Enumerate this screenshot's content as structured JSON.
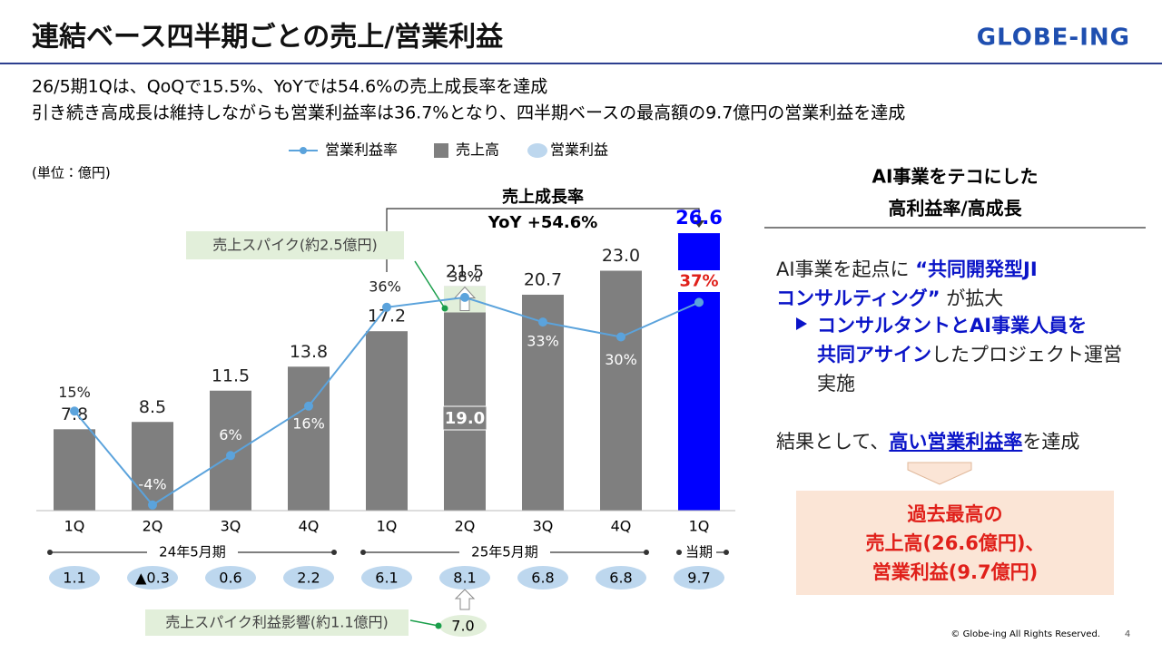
{
  "header": {
    "title": "連結ベース四半期ごとの売上/営業利益",
    "logo": "GLOBE-ING"
  },
  "summary": [
    "26/5期1Qは、QoQで15.5%、YoYでは54.6%の売上成長率を達成",
    "引き続き高成長は維持しながらも営業利益率は36.7%となり、四半期ベースの最高額の9.7億円の営業利益を達成"
  ],
  "chart_data": {
    "type": "combo",
    "unit": "(単位：億円)",
    "categories": [
      "1Q",
      "2Q",
      "3Q",
      "4Q",
      "1Q",
      "2Q",
      "3Q",
      "4Q",
      "1Q"
    ],
    "periods": [
      "24年5月期",
      "25年5月期",
      "当期"
    ],
    "highlight_color": "#0000ff",
    "series": [
      {
        "name": "営業利益率",
        "type": "line",
        "color": "#5ba3dc",
        "values": [
          15,
          -4,
          6,
          16,
          36,
          38,
          33,
          30,
          37
        ],
        "value_labels": [
          "15%",
          "-4%",
          "6%",
          "16%",
          "36%",
          "38%",
          "33%",
          "30%",
          "37%"
        ]
      },
      {
        "name": "売上高",
        "type": "bar",
        "color": "#7f7f7f",
        "values": [
          7.8,
          8.5,
          11.5,
          13.8,
          17.2,
          21.5,
          20.7,
          23.0,
          26.6
        ],
        "value_labels": [
          "7.8",
          "8.5",
          "11.5",
          "13.8",
          "17.2",
          "21.5",
          "20.7",
          "23.0",
          "26.6"
        ]
      },
      {
        "name": "営業利益",
        "type": "ellipse",
        "color": "#bdd7ee",
        "values": [
          1.1,
          -0.3,
          0.6,
          2.2,
          6.1,
          8.1,
          6.8,
          6.8,
          9.7
        ],
        "value_labels": [
          "1.1",
          "▲0.3",
          "0.6",
          "2.2",
          "6.1",
          "8.1",
          "6.8",
          "6.8",
          "9.7"
        ]
      }
    ],
    "growth": {
      "title": "売上成長率",
      "text": "YoY +54.6%"
    },
    "sales_spike": {
      "label": "売上スパイク(約2.5億円)",
      "value": 19.0,
      "value_label": "19.0"
    },
    "profit_spike": {
      "label": "売上スパイク利益影響(約1.1億円)",
      "value": 7.0,
      "value_label": "7.0"
    }
  },
  "panel": {
    "heading": [
      "AI事業をテコにした",
      "高利益率/高成長"
    ],
    "body": [
      [
        {
          "text": "AI事業を起点に "
        },
        {
          "text": "“共同開発型JI",
          "em": true
        }
      ],
      [
        {
          "text": "コンサルティング”",
          "em": true
        },
        {
          "text": " が拡大"
        }
      ],
      [
        {
          "text": "コンサルタントとAI事業人員を",
          "em": true
        }
      ],
      [
        {
          "text": "共同アサイン",
          "em": true
        },
        {
          "text": "したプロジェクト運営"
        }
      ],
      [
        {
          "text": "実施"
        }
      ],
      [
        {
          "text": "結果として、"
        },
        {
          "text": "高い営業利益率",
          "em": true,
          "underline": true
        },
        {
          "text": "を達成"
        }
      ]
    ],
    "result": [
      "過去最高の",
      "売上高(26.6億円)、",
      "営業利益(9.7億円)"
    ]
  },
  "footer": {
    "copyright": "© Globe-ing All Rights Reserved.",
    "page": "4"
  }
}
